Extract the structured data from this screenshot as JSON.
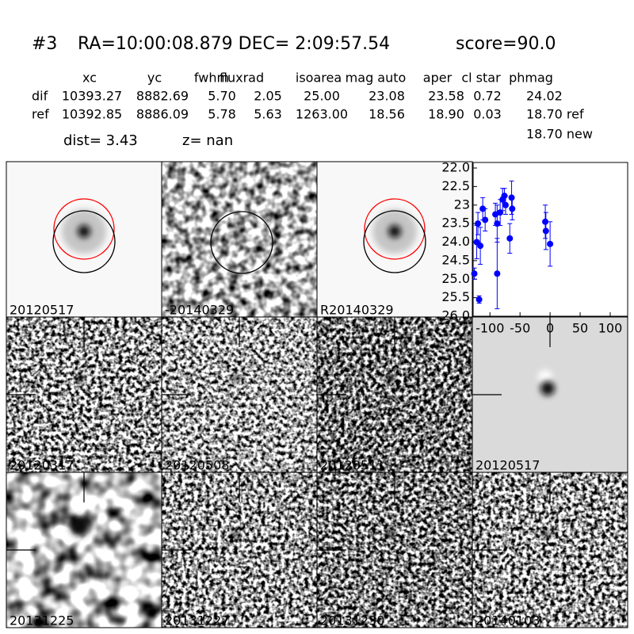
{
  "header": {
    "id": "#3",
    "coords": "RA=10:00:08.879 DEC= 2:09:57.54",
    "score": "score=90.0"
  },
  "table": {
    "columns": [
      "xc",
      "yc",
      "fwhm",
      "fluxrad",
      "isoarea",
      "mag auto",
      "aper",
      "cl star",
      "phmag"
    ],
    "rows": [
      {
        "label": "dif",
        "cells": [
          "10393.27",
          "8882.69",
          "5.70",
          "2.05",
          "25.00",
          "23.08",
          "23.58",
          "0.72",
          "24.02"
        ]
      },
      {
        "label": "ref",
        "cells": [
          "10392.85",
          "8886.09",
          "5.78",
          "5.63",
          "1263.00",
          "18.56",
          "18.90",
          "0.03",
          "18.70 ref"
        ]
      }
    ],
    "extra": "18.70 new"
  },
  "dist": "dist=  3.43",
  "z": "z=   nan",
  "stamps": [
    {
      "label": "20120517",
      "color": "#000000"
    },
    {
      "label": "-20140329",
      "color": "#000000"
    },
    {
      "label": "R20140329",
      "color": "#000000"
    },
    {
      "label": "20120317",
      "color": "#000000"
    },
    {
      "label": "20120508",
      "color": "#000000"
    },
    {
      "label": "20120511",
      "color": "#000000"
    },
    {
      "label": "20120517",
      "color": "#ff0000"
    },
    {
      "label": "20131225",
      "color": "#000000"
    },
    {
      "label": "20131227",
      "color": "#000000"
    },
    {
      "label": "20131230",
      "color": "#000000"
    },
    {
      "label": "20140103",
      "color": "#000000"
    }
  ],
  "chart_data": {
    "type": "scatter",
    "color": "#0000ff",
    "y_inverted": true,
    "x": [
      -126,
      -122,
      -120,
      -118,
      -116,
      -112,
      -108,
      -91,
      -88,
      -88,
      -83,
      -79,
      -76,
      -74,
      -67,
      -64,
      -63,
      -8,
      -7,
      0
    ],
    "values": [
      24.85,
      24.0,
      23.5,
      25.55,
      24.1,
      23.1,
      23.4,
      23.25,
      23.5,
      24.85,
      23.2,
      22.85,
      22.75,
      23.0,
      23.9,
      22.8,
      23.1,
      23.45,
      23.7,
      24.05
    ],
    "errors": [
      0.15,
      0.45,
      0.3,
      0.1,
      0.5,
      0.3,
      0.3,
      0.3,
      0.5,
      0.95,
      0.35,
      0.3,
      0.2,
      0.25,
      0.4,
      0.45,
      0.3,
      0.45,
      0.5,
      0.6
    ],
    "xlim": [
      -128,
      129
    ],
    "ylim": [
      21.85,
      26.0
    ],
    "xticks": [
      -100,
      -50,
      0,
      50,
      100
    ],
    "yticks": [
      {
        "value": 22,
        "label": "22.0"
      },
      22.5,
      23,
      {
        "value": 23.5,
        "label": "23.5"
      },
      {
        "value": 24,
        "label": "24.0"
      },
      24.5,
      {
        "value": 25,
        "label": "25.0"
      },
      25.5,
      {
        "value": 26,
        "label": "26.0"
      }
    ]
  }
}
